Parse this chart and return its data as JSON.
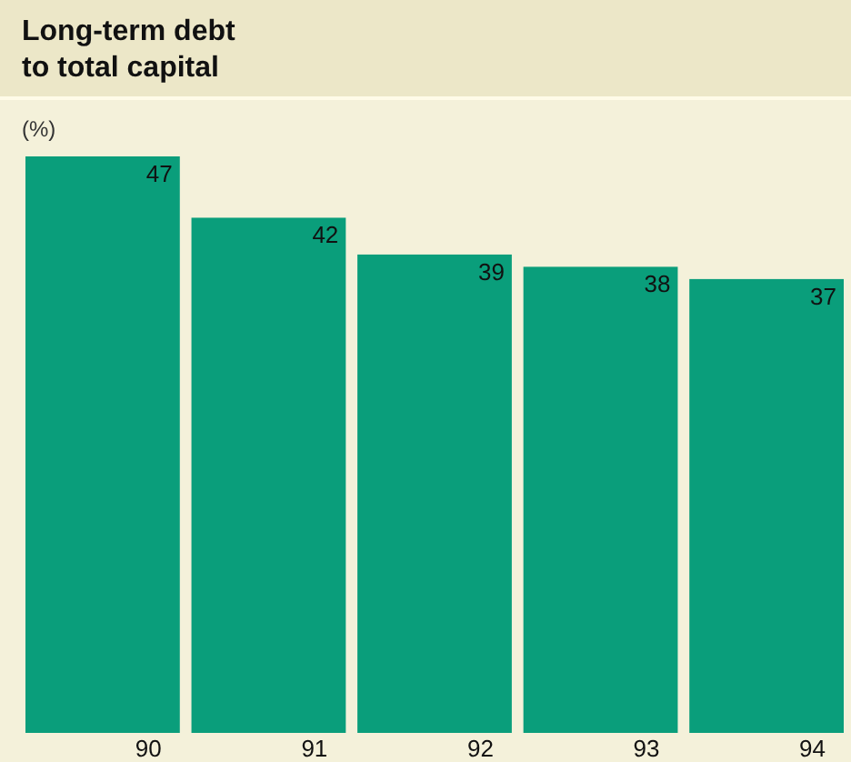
{
  "chart_data": {
    "type": "bar",
    "title": "Long-term debt\nto total capital",
    "ylabel": "(%)",
    "categories": [
      "90",
      "91",
      "92",
      "93",
      "94"
    ],
    "values": [
      47,
      42,
      39,
      38,
      37
    ],
    "color": "#0a9e7b",
    "data_labels": true
  }
}
